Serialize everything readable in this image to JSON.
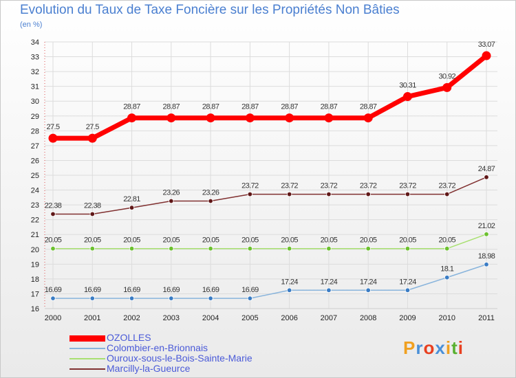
{
  "chart_data": {
    "type": "line",
    "title": "Evolution du Taux de Taxe Foncière sur les Propriétés Non Bâties",
    "subtitle": "(en %)",
    "x": [
      "2000",
      "2001",
      "2002",
      "2003",
      "2004",
      "2005",
      "2006",
      "2007",
      "2008",
      "2009",
      "2010",
      "2011"
    ],
    "ylim": [
      16,
      34
    ],
    "yticks": [
      "16",
      "17",
      "18",
      "19",
      "20",
      "21",
      "22",
      "23",
      "24",
      "25",
      "26",
      "27",
      "28",
      "29",
      "30",
      "31",
      "32",
      "33",
      "34"
    ],
    "grid": true,
    "legend_position": "bottom-left",
    "series": [
      {
        "name": "OZOLLES",
        "color": "#ff0000",
        "marker_color": "#ff0000",
        "values": [
          27.5,
          27.5,
          28.87,
          28.87,
          28.87,
          28.87,
          28.87,
          28.87,
          28.87,
          30.31,
          30.92,
          33.07
        ],
        "labels": [
          "27.5",
          "27.5",
          "28.87",
          "28.87",
          "28.87",
          "28.87",
          "28.87",
          "28.87",
          "28.87",
          "30.31",
          "30.92",
          "33.07"
        ]
      },
      {
        "name": "Colombier-en-Brionnais",
        "color": "#88b4dc",
        "marker_color": "#3a7cc4",
        "values": [
          16.69,
          16.69,
          16.69,
          16.69,
          16.69,
          16.69,
          17.24,
          17.24,
          17.24,
          17.24,
          18.1,
          18.98
        ],
        "labels": [
          "16.69",
          "16.69",
          "16.69",
          "16.69",
          "16.69",
          "16.69",
          "17.24",
          "17.24",
          "17.24",
          "17.24",
          "18.1",
          "18.98"
        ]
      },
      {
        "name": "Ouroux-sous-le-Bois-Sainte-Marie",
        "color": "#a8e070",
        "marker_color": "#6cc030",
        "values": [
          20.05,
          20.05,
          20.05,
          20.05,
          20.05,
          20.05,
          20.05,
          20.05,
          20.05,
          20.05,
          20.05,
          21.02
        ],
        "labels": [
          "20.05",
          "20.05",
          "20.05",
          "20.05",
          "20.05",
          "20.05",
          "20.05",
          "20.05",
          "20.05",
          "20.05",
          "20.05",
          "21.02"
        ]
      },
      {
        "name": "Marcilly-la-Gueurce",
        "color": "#803030",
        "marker_color": "#601818",
        "values": [
          22.38,
          22.38,
          22.81,
          23.26,
          23.26,
          23.72,
          23.72,
          23.72,
          23.72,
          23.72,
          23.72,
          24.87
        ],
        "labels": [
          "22.38",
          "22.38",
          "22.81",
          "23.26",
          "23.26",
          "23.72",
          "23.72",
          "23.72",
          "23.72",
          "23.72",
          "23.72",
          "24.87"
        ]
      }
    ]
  },
  "brand": {
    "letters": [
      "P",
      "r",
      "o",
      "x",
      "i",
      "t",
      "i"
    ],
    "colors": [
      "#f0a020",
      "#4a90d8",
      "#e84020",
      "#4a90d8",
      "#f0a020",
      "#58b030",
      "#e84020"
    ]
  }
}
